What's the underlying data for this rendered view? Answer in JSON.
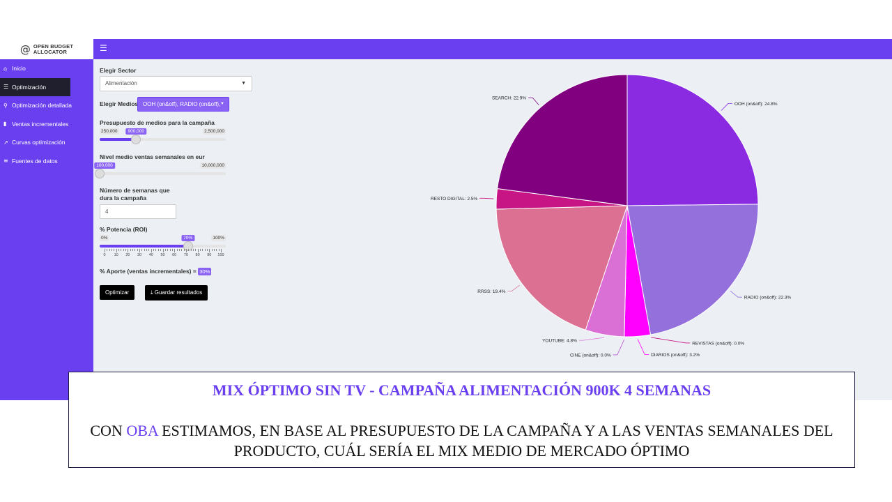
{
  "brand": {
    "symbol": "@",
    "line1": "OPEN BUDGET",
    "line2": "ALLOCATOR"
  },
  "topbar": {
    "menu_icon": "hamburger-icon"
  },
  "sidebar": {
    "items": [
      {
        "label": "Inicio",
        "icon": "home-icon",
        "active": false
      },
      {
        "label": "Optimización",
        "icon": "sliders-icon",
        "active": true
      },
      {
        "label": "Optimización detallada",
        "icon": "search-icon",
        "active": false
      },
      {
        "label": "Ventas incrementales",
        "icon": "signal-icon",
        "active": false
      },
      {
        "label": "Curvas optimización",
        "icon": "line-chart-icon",
        "active": false
      },
      {
        "label": "Fuentes de datos",
        "icon": "database-icon",
        "active": false
      }
    ]
  },
  "controls": {
    "sector": {
      "label": "Elegir Sector",
      "value": "Alimentación"
    },
    "medios": {
      "label": "Elegir Medios:",
      "value": "OOH (on&off), RADIO (on&off),"
    },
    "presupuesto": {
      "label": "Presupuesto de medios para la campaña",
      "min_label": "250,000",
      "max_label": "2,500,000",
      "value_label": "900,000",
      "min": 250000,
      "max": 2500000,
      "value": 900000
    },
    "ventas": {
      "label": "Nivel medio ventas semanales en eur",
      "min_label": "100,000",
      "max_label": "10,000,000",
      "value_label": "100,000",
      "min": 100000,
      "max": 10000000,
      "value": 100000
    },
    "semanas": {
      "label_line1": "Número de semanas que",
      "label_line2": "dura la campaña",
      "value": "4"
    },
    "potencia": {
      "label": "% Potencia (ROI)",
      "min_label": "0%",
      "max_label": "100%",
      "value_label": "70%",
      "value": 70,
      "tick_labels": [
        "0",
        "10",
        "20",
        "30",
        "40",
        "50",
        "60",
        "70",
        "80",
        "90",
        "100"
      ]
    },
    "aporte": {
      "label": "% Aporte (ventas incrementales) =",
      "value": "30%"
    },
    "optimizar_label": "Optimizar",
    "guardar_label": "Guardar resultados"
  },
  "chart_data": {
    "type": "pie",
    "slices": [
      {
        "label": "OOH (on&off): 24.8%",
        "name": "OOH (on&off)",
        "value": 24.8,
        "color": "#8a2be2"
      },
      {
        "label": "RADIO (on&off): 22.3%",
        "name": "RADIO (on&off)",
        "value": 22.3,
        "color": "#9370db"
      },
      {
        "label": "REVISTAS (on&off): 0.0%",
        "name": "REVISTAS (on&off)",
        "value": 0.0,
        "color": "#c71585"
      },
      {
        "label": "DIARIOS (on&off): 3.2%",
        "name": "DIARIOS (on&off)",
        "value": 3.2,
        "color": "#ff00ff"
      },
      {
        "label": "CINE (on&off): 0.0%",
        "name": "CINE (on&off)",
        "value": 0.0,
        "color": "#ba55d3"
      },
      {
        "label": "YOUTUBE: 4.8%",
        "name": "YOUTUBE",
        "value": 4.8,
        "color": "#da70d6"
      },
      {
        "label": "RRSS: 19.4%",
        "name": "RRSS",
        "value": 19.4,
        "color": "#db7093"
      },
      {
        "label": "RESTO DIGITAL: 2.5%",
        "name": "RESTO DIGITAL",
        "value": 2.5,
        "color": "#c71585"
      },
      {
        "label": "SEARCH: 22.9%",
        "name": "SEARCH",
        "value": 22.9,
        "color": "#800080"
      }
    ]
  },
  "caption": {
    "title": "MIX ÓPTIMO SIN TV - CAMPAÑA ALIMENTACIÓN 900K 4 SEMANAS",
    "body_prefix": "CON ",
    "body_highlight": "OBA",
    "body_line1_rest": " ESTIMAMOS, EN BASE AL PRESUPUESTO DE LA CAMPAÑA Y A LAS VENTAS SEMANALES DEL",
    "body_line2": "PRODUCTO, CUÁL SERÍA EL MIX MEDIO DE MERCADO ÓPTIMO"
  },
  "colors": {
    "accent": "#6a3ff0",
    "accent_light": "#8a63f5",
    "active_nav": "#1f1f2e",
    "background": "#ecf0f5"
  }
}
